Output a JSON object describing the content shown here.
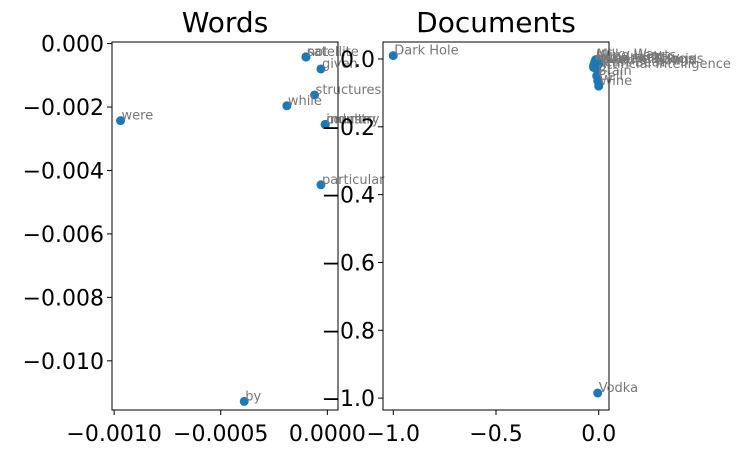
{
  "chart_data": [
    {
      "type": "scatter",
      "title": "Words",
      "xlabel": "",
      "ylabel": "",
      "xlim": [
        -0.00101,
        5e-05
      ],
      "ylim": [
        -0.01155,
        5e-05
      ],
      "xticks": [
        {
          "v": -0.001,
          "label": "−0.0010"
        },
        {
          "v": -0.0005,
          "label": "−0.0005"
        },
        {
          "v": 0.0,
          "label": "0.0000"
        }
      ],
      "yticks": [
        {
          "v": 0.0,
          "label": "0.000"
        },
        {
          "v": -0.002,
          "label": "−0.002"
        },
        {
          "v": -0.004,
          "label": "−0.004"
        },
        {
          "v": -0.006,
          "label": "−0.006"
        },
        {
          "v": -0.008,
          "label": "−0.008"
        },
        {
          "v": -0.01,
          "label": "−0.010"
        }
      ],
      "points": [
        {
          "x": -0.0001,
          "y": -0.00042,
          "label": "satellite"
        },
        {
          "x": -0.0001,
          "y": -0.00042,
          "label": "not"
        },
        {
          "x": -0.0001,
          "y": -0.00042,
          "label": "sat"
        },
        {
          "x": -3e-05,
          "y": -0.0008,
          "label": "given"
        },
        {
          "x": -6e-05,
          "y": -0.00162,
          "label": "structures"
        },
        {
          "x": -0.00019,
          "y": -0.00196,
          "label": "while"
        },
        {
          "x": -0.00097,
          "y": -0.00243,
          "label": "were"
        },
        {
          "x": -1e-05,
          "y": -0.00255,
          "label": "industry"
        },
        {
          "x": -1e-05,
          "y": -0.00255,
          "label": "country"
        },
        {
          "x": -1e-05,
          "y": -0.00255,
          "label": "much"
        },
        {
          "x": -3e-05,
          "y": -0.00445,
          "label": "particular"
        },
        {
          "x": -0.00039,
          "y": -0.01128,
          "label": "by"
        }
      ]
    },
    {
      "type": "scatter",
      "title": "Documents",
      "xlabel": "",
      "ylabel": "",
      "xlim": [
        -1.05,
        0.05
      ],
      "ylim": [
        -1.035,
        0.05
      ],
      "xticks": [
        {
          "v": -1.0,
          "label": "−1.0"
        },
        {
          "v": -0.5,
          "label": "−0.5"
        },
        {
          "v": 0.0,
          "label": "0.0"
        }
      ],
      "yticks": [
        {
          "v": 0.0,
          "label": "0.0"
        },
        {
          "v": -0.2,
          "label": "−0.2"
        },
        {
          "v": -0.4,
          "label": "−0.4"
        },
        {
          "v": -0.6,
          "label": "−0.6"
        },
        {
          "v": -0.8,
          "label": "−0.8"
        },
        {
          "v": -1.0,
          "label": "−1.0"
        }
      ],
      "points": [
        {
          "x": -1.0,
          "y": 0.01,
          "label": "Dark Hole"
        },
        {
          "x": -0.015,
          "y": -0.002,
          "label": "Milky Way"
        },
        {
          "x": -0.015,
          "y": -0.005,
          "label": "Wine Hearts"
        },
        {
          "x": -0.02,
          "y": -0.01,
          "label": "Film Industry"
        },
        {
          "x": -0.02,
          "y": -0.015,
          "label": "Invasive Species"
        },
        {
          "x": -0.025,
          "y": -0.02,
          "label": "Speed of Sound"
        },
        {
          "x": -0.025,
          "y": -0.025,
          "label": "Heart Beat"
        },
        {
          "x": -0.01,
          "y": -0.03,
          "label": "Artificial Intelligence"
        },
        {
          "x": 0.0,
          "y": -0.015,
          "label": "Human Beings"
        },
        {
          "x": -0.01,
          "y": -0.05,
          "label": "Brain"
        },
        {
          "x": -0.005,
          "y": -0.065,
          "label": "Cell"
        },
        {
          "x": 0.0,
          "y": -0.08,
          "label": "Wine"
        },
        {
          "x": -0.005,
          "y": -0.985,
          "label": "Vodka"
        }
      ]
    }
  ]
}
